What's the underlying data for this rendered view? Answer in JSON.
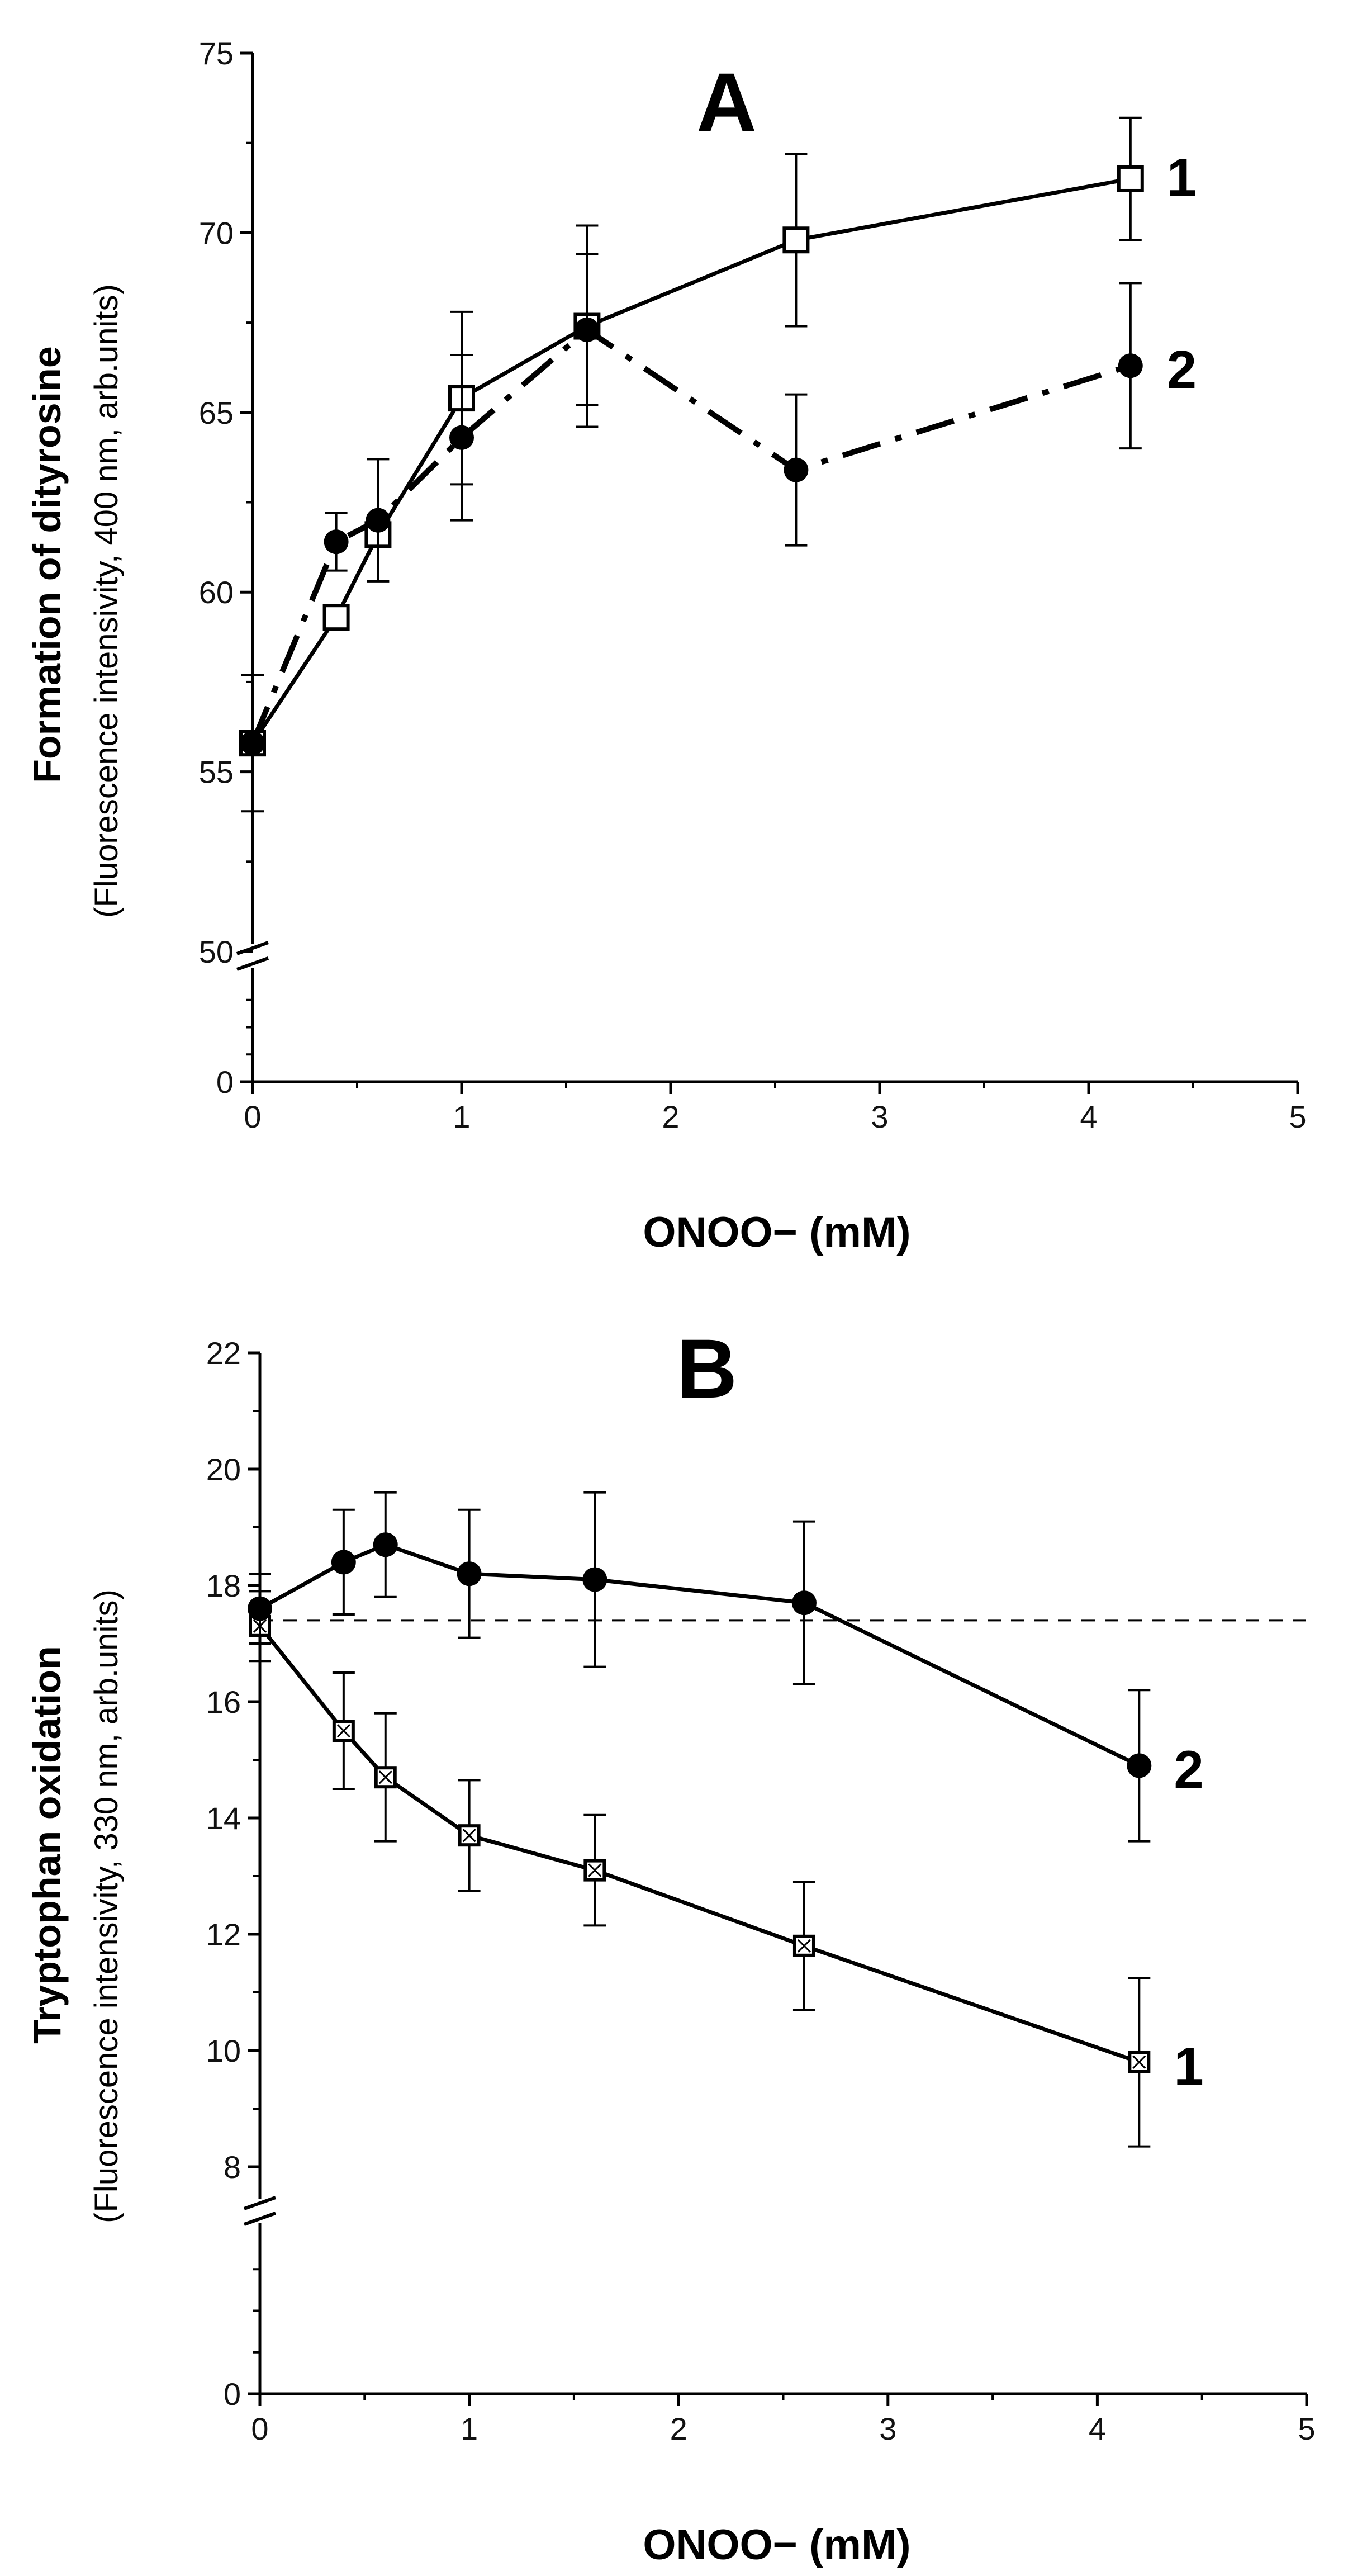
{
  "chart_data": [
    {
      "type": "line",
      "panel": "A",
      "xlabel": "ONOO− (mM)",
      "ylabel": "Formation of dityrosine",
      "ylabel_sub": "(Fluorescence intensivity, 400 nm, arb.units)",
      "xlim": [
        0,
        5
      ],
      "ylim_upper": [
        50,
        75
      ],
      "ylim_lower": [
        0,
        50
      ],
      "x_ticks": [
        "0",
        "1",
        "2",
        "3",
        "4",
        "5"
      ],
      "y_ticks": [
        "0",
        "50",
        "55",
        "60",
        "65",
        "70",
        "75"
      ],
      "series": [
        {
          "name": "1",
          "marker": "open-square",
          "line": "solid",
          "x": [
            0,
            0.4,
            0.6,
            1.0,
            1.6,
            2.6,
            4.2
          ],
          "y": [
            55.8,
            59.3,
            61.6,
            65.4,
            67.4,
            69.8,
            71.5
          ],
          "err": [
            1.9,
            0,
            0,
            2.4,
            2.8,
            2.4,
            1.7
          ]
        },
        {
          "name": "2",
          "marker": "filled-circle",
          "line": "dash-dot",
          "x": [
            0,
            0.4,
            0.6,
            1.0,
            1.6,
            2.6,
            4.2
          ],
          "y": [
            55.8,
            61.4,
            62.0,
            64.3,
            67.3,
            63.4,
            66.3
          ],
          "err": [
            0,
            0.8,
            1.7,
            2.3,
            2.1,
            2.1,
            2.3
          ]
        }
      ]
    },
    {
      "type": "line",
      "panel": "B",
      "xlabel": "ONOO− (mM)",
      "ylabel": "Tryptophan oxidation",
      "ylabel_sub": "(Fluorescence intensivity, 330 nm, arb.units)",
      "xlim": [
        0,
        5
      ],
      "ylim_upper": [
        7,
        22
      ],
      "ylim_lower": [
        0,
        7
      ],
      "x_ticks": [
        "0",
        "1",
        "2",
        "3",
        "4",
        "5"
      ],
      "y_ticks": [
        "0",
        "8",
        "10",
        "12",
        "14",
        "16",
        "18",
        "20",
        "22"
      ],
      "reference_line": 17.4,
      "series": [
        {
          "name": "1",
          "marker": "crossed-square",
          "line": "solid",
          "x": [
            0,
            0.4,
            0.6,
            1.0,
            1.6,
            2.6,
            4.2
          ],
          "y": [
            17.3,
            15.5,
            14.7,
            13.7,
            13.1,
            11.8,
            9.8
          ],
          "err": [
            0.6,
            1.0,
            1.1,
            0.95,
            0.95,
            1.1,
            1.45
          ]
        },
        {
          "name": "2",
          "marker": "filled-circle",
          "line": "solid",
          "x": [
            0,
            0.4,
            0.6,
            1.0,
            1.6,
            2.6,
            4.2
          ],
          "y": [
            17.6,
            18.4,
            18.7,
            18.2,
            18.1,
            17.7,
            14.9
          ],
          "err": [
            0.6,
            0.9,
            0.9,
            1.1,
            1.5,
            1.4,
            1.3
          ]
        }
      ]
    }
  ]
}
